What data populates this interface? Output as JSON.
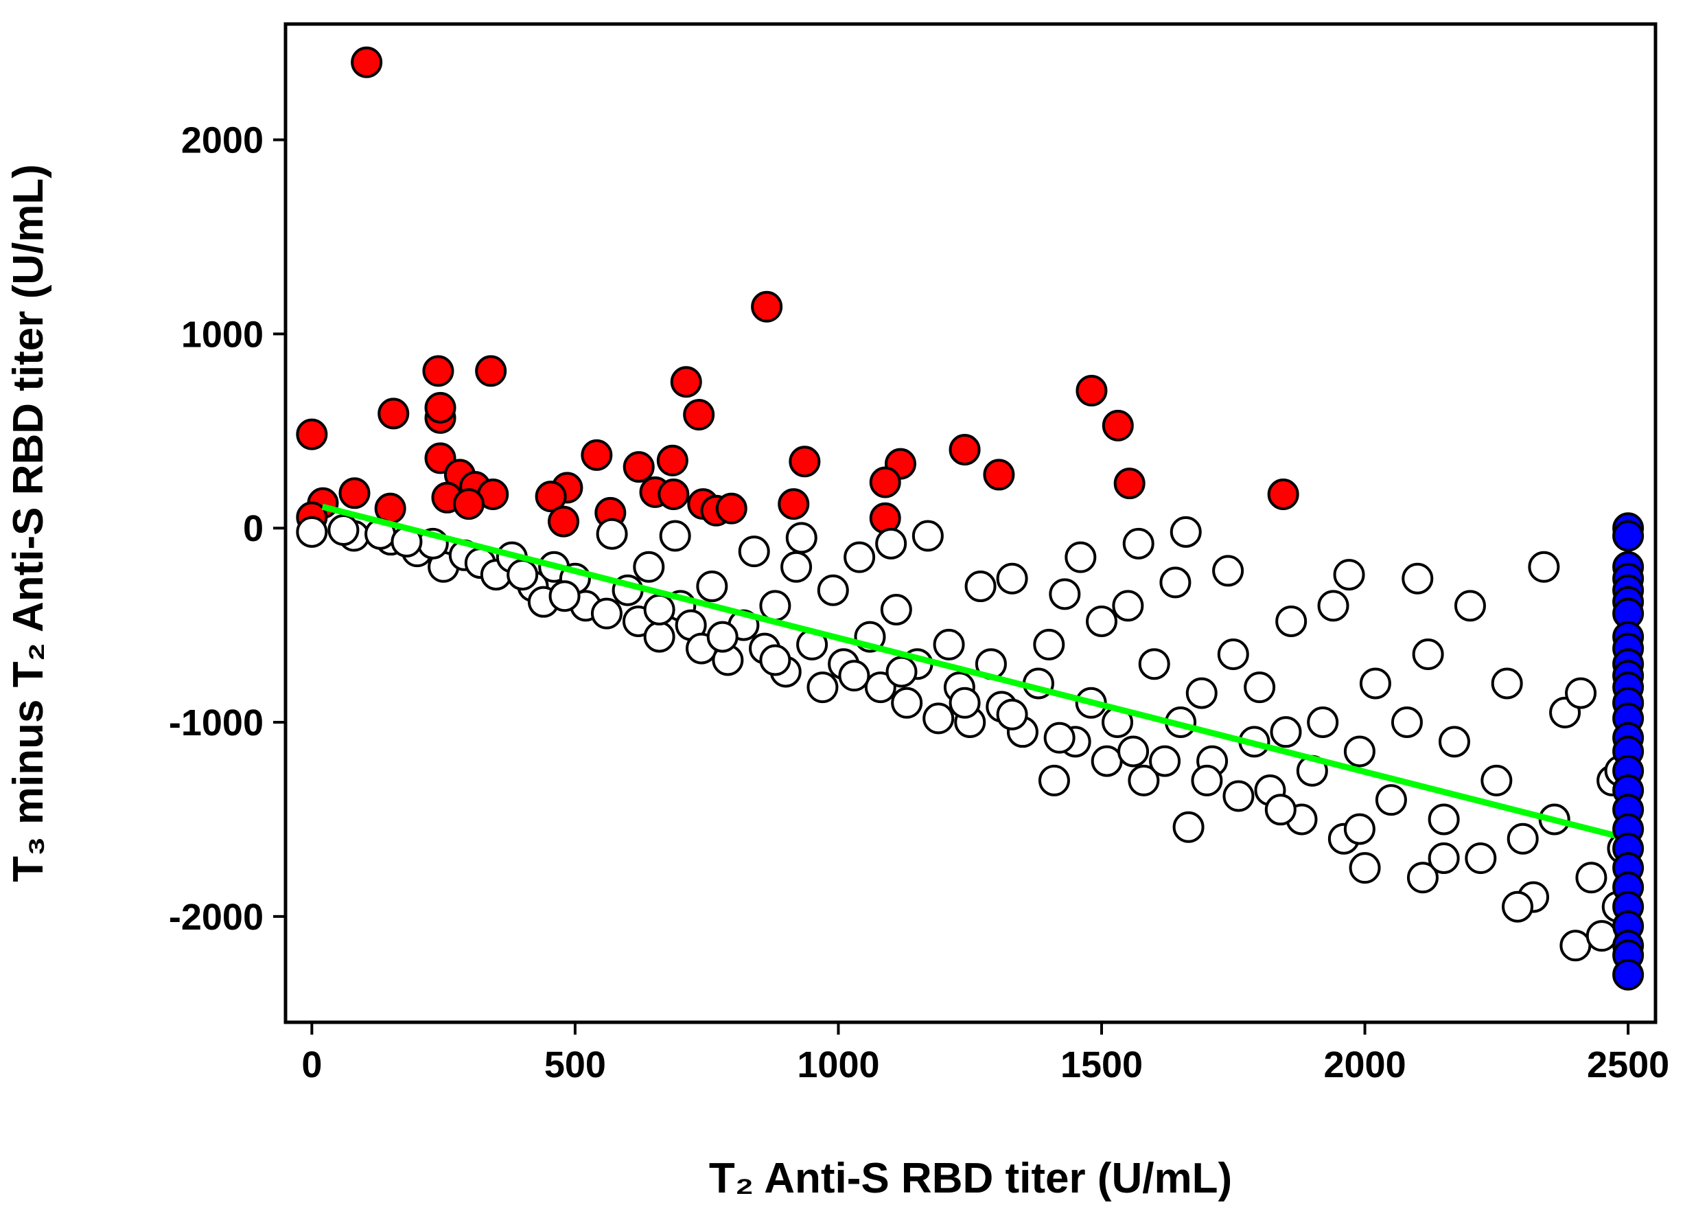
{
  "chart_data": {
    "type": "scatter",
    "x_label": "T₂ Anti-S RBD titer (U/mL)",
    "y_label": "T₃ minus T₂ Anti-S RBD titer (U/mL)",
    "xlim": [
      -50,
      2552
    ],
    "ylim": [
      -2545,
      2596
    ],
    "xticks": [
      0,
      500,
      1000,
      1500,
      2000,
      2500
    ],
    "yticks": [
      -2000,
      -1000,
      0,
      1000,
      2000
    ],
    "series": [
      {
        "color": "#ff0000",
        "x": [
          104,
          864,
          240,
          340,
          711,
          735,
          1481,
          1531,
          155,
          244,
          244,
          0,
          541,
          936,
          1240,
          1118,
          1305,
          1553,
          1845,
          1089,
          621,
          685,
          244,
          281,
          310,
          344,
          485,
          454,
          652,
          687,
          743,
          768,
          797,
          915,
          1089,
          81,
          21,
          149,
          257,
          298,
          0,
          478,
          567
        ],
        "y": [
          2399,
          1140,
          809,
          809,
          753,
          584,
          708,
          528,
          590,
          567,
          620,
          483,
          376,
          343,
          404,
          331,
          275,
          230,
          174,
          236,
          315,
          348,
          360,
          275,
          213,
          174,
          208,
          163,
          185,
          174,
          124,
          90,
          101,
          124,
          51,
          180,
          129,
          101,
          157,
          124,
          56,
          34,
          79
        ]
      },
      {
        "color": "#ffffff",
        "x": [
          0,
          80,
          150,
          200,
          250,
          230,
          290,
          320,
          350,
          380,
          420,
          440,
          460,
          500,
          520,
          560,
          570,
          600,
          620,
          640,
          660,
          690,
          700,
          720,
          740,
          760,
          790,
          820,
          840,
          860,
          880,
          900,
          920,
          930,
          950,
          970,
          990,
          1010,
          1040,
          1060,
          1080,
          1100,
          1110,
          1130,
          1150,
          1170,
          1190,
          1210,
          1230,
          1250,
          1270,
          1290,
          1310,
          1330,
          1350,
          1380,
          1400,
          1410,
          1430,
          1450,
          1460,
          1480,
          1500,
          1510,
          1530,
          1550,
          1570,
          1580,
          1600,
          1620,
          1640,
          1650,
          1660,
          1665,
          1690,
          1710,
          1740,
          1750,
          1760,
          1790,
          1800,
          1820,
          1850,
          1860,
          1880,
          1900,
          1920,
          1940,
          1960,
          1970,
          1990,
          2000,
          2020,
          2050,
          2080,
          2100,
          2110,
          2120,
          2150,
          2170,
          2200,
          2220,
          2250,
          2270,
          2300,
          2320,
          2340,
          2360,
          2380,
          2400,
          2410,
          2430,
          2450,
          2470,
          2485,
          2490,
          2480,
          60,
          130,
          180,
          400,
          480,
          660,
          780,
          880,
          1030,
          1120,
          1240,
          1330,
          1420,
          1560,
          1700,
          1840,
          1990,
          2150,
          2290,
          2500
        ],
        "y": [
          -20,
          -40,
          -60,
          -120,
          -200,
          -80,
          -140,
          -180,
          -240,
          -150,
          -300,
          -380,
          -200,
          -260,
          -400,
          -440,
          -30,
          -320,
          -480,
          -200,
          -560,
          -40,
          -400,
          -500,
          -620,
          -300,
          -680,
          -500,
          -120,
          -620,
          -400,
          -740,
          -200,
          -50,
          -600,
          -820,
          -320,
          -700,
          -150,
          -560,
          -820,
          -80,
          -420,
          -900,
          -700,
          -40,
          -980,
          -600,
          -820,
          -1000,
          -300,
          -700,
          -920,
          -260,
          -1050,
          -800,
          -600,
          -1300,
          -340,
          -1100,
          -150,
          -900,
          -480,
          -1200,
          -1000,
          -400,
          -80,
          -1300,
          -700,
          -1200,
          -280,
          -1000,
          -20,
          -1540,
          -850,
          -1200,
          -220,
          -650,
          -1380,
          -1100,
          -820,
          -1350,
          -1050,
          -480,
          -1500,
          -1250,
          -1000,
          -400,
          -1600,
          -240,
          -1150,
          -1750,
          -800,
          -1400,
          -1000,
          -260,
          -1800,
          -650,
          -1500,
          -1100,
          -400,
          -1700,
          -1300,
          -800,
          -1600,
          -1900,
          -200,
          -1500,
          -950,
          -2150,
          -850,
          -1800,
          -2100,
          -1300,
          -1250,
          -1650,
          -1950,
          -10,
          -30,
          -70,
          -240,
          -350,
          -420,
          -560,
          -680,
          -760,
          -740,
          -900,
          -960,
          -1080,
          -1150,
          -1300,
          -1450,
          -1550,
          -1700,
          -1950,
          -900
        ]
      },
      {
        "color": "#0000ff",
        "x": [
          2500,
          2500,
          2500,
          2500,
          2500,
          2500,
          2500,
          2500,
          2500,
          2500,
          2500,
          2500,
          2500,
          2500,
          2500,
          2500,
          2500,
          2500,
          2500,
          2500,
          2500,
          2500,
          2500,
          2500,
          2500,
          2500,
          2500,
          2500
        ],
        "y": [
          0,
          -40,
          -200,
          -260,
          -320,
          -380,
          -440,
          -560,
          -620,
          -700,
          -760,
          -820,
          -900,
          -980,
          -1080,
          -1150,
          -1250,
          -1350,
          -1450,
          -1550,
          -1650,
          -1750,
          -1850,
          -1950,
          -2050,
          -2150,
          -2200,
          -2300
        ]
      }
    ],
    "fit": {
      "color": "#00ff00",
      "x": [
        20,
        2500
      ],
      "y": [
        110,
        -1600
      ]
    }
  }
}
